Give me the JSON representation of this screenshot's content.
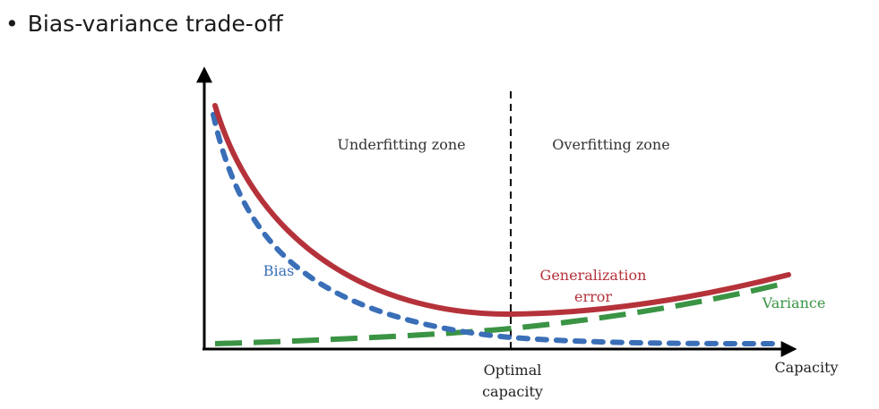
{
  "slide": {
    "bullet": "•",
    "title": "Bias-variance trade-off"
  },
  "diagram": {
    "zones": {
      "left": "Underfitting zone",
      "right": "Overfitting zone"
    },
    "axis": {
      "x_label": "Capacity",
      "optimal_line1": "Optimal",
      "optimal_line2": "capacity"
    },
    "curves": {
      "bias": "Bias",
      "generalization_line1": "Generalization",
      "generalization_line2": "error",
      "variance": "Variance"
    },
    "colors": {
      "bias": "#3a6fb8",
      "generalization": "#b5323a",
      "variance": "#3a9444",
      "zone_text": "#333333",
      "axis": "#000000"
    }
  }
}
